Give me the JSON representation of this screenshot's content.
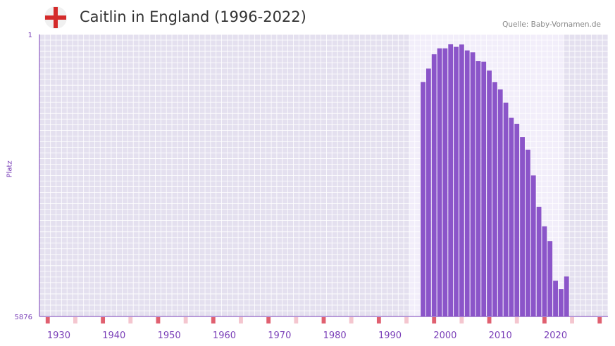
{
  "header": {
    "title": "Caitlin in England (1996-2022)",
    "source": "Quelle: Baby-Vornamen.de",
    "flag_icon": "england-flag-icon"
  },
  "colors": {
    "bar": "#8b55c9",
    "plot_bg_outside": "#e4e0ef",
    "plot_bg_inside": "#f2eefa",
    "grid": "#ffffff",
    "axis": "#7a3fb8",
    "marker_decade": "#e06070",
    "marker_half": "#f4c6cf",
    "flag_cross": "#d42a2a"
  },
  "chart_data": {
    "type": "bar",
    "title": "Caitlin in England (1996-2022)",
    "ylabel": "Platz",
    "xlabel": "",
    "y_top_label": "1",
    "y_bottom_label": "5876",
    "ylim": [
      5876,
      1
    ],
    "y_inverted": true,
    "x_range": [
      1927,
      2029
    ],
    "x_ticks": [
      1930,
      1940,
      1950,
      1960,
      1970,
      1980,
      1990,
      2000,
      2010,
      2020
    ],
    "highlight_range": [
      1994,
      2021
    ],
    "series": [
      {
        "name": "Caitlin",
        "x": [
          1996,
          1997,
          1998,
          1999,
          2000,
          2001,
          2002,
          2003,
          2004,
          2005,
          2006,
          2007,
          2008,
          2009,
          2010,
          2011,
          2012,
          2013,
          2014,
          2015,
          2016,
          2017,
          2018,
          2019,
          2020,
          2021,
          2022
        ],
        "values": [
          993,
          711,
          414,
          290,
          290,
          206,
          259,
          210,
          333,
          372,
          558,
          568,
          754,
          996,
          1147,
          1420,
          1738,
          1862,
          2141,
          2401,
          2937,
          3591,
          3998,
          4309,
          5131,
          5306,
          5044
        ]
      }
    ]
  }
}
